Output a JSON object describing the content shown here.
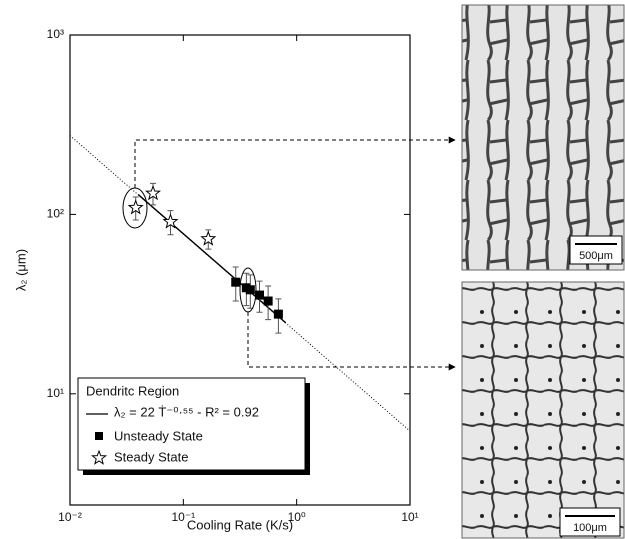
{
  "chart_data": {
    "type": "scatter",
    "xlabel": "Cooling Rate (K/s)",
    "ylabel": "λ₂ (μm)",
    "log_x": true,
    "log_y": true,
    "xlim": [
      0.01,
      10
    ],
    "ylim": [
      2.4,
      1000
    ],
    "xticks": [
      {
        "value": 0.01,
        "label": "10⁻²"
      },
      {
        "value": 0.1,
        "label": "10⁻¹"
      },
      {
        "value": 1,
        "label": "10⁰"
      },
      {
        "value": 10,
        "label": "10¹"
      }
    ],
    "yticks": [
      {
        "value": 10,
        "label": "10¹"
      },
      {
        "value": 100,
        "label": "10²"
      },
      {
        "value": 1000,
        "label": "10³"
      }
    ],
    "legend": {
      "title": "Dendritc Region",
      "position": "lower left"
    },
    "fit": {
      "label": "λ₂ = 22 Ṫ⁻⁰·⁵⁵ - R² = 0.92",
      "color": "#000",
      "x": [
        0.04,
        0.8
      ],
      "values": [
        129,
        24.9
      ],
      "extended_x": [
        0.01,
        10
      ],
      "extended_values": [
        275,
        6.2
      ]
    },
    "series": [
      {
        "name": "Unsteady State",
        "marker": "square",
        "color": "#000",
        "x": [
          0.29,
          0.36,
          0.39,
          0.47,
          0.56,
          0.69
        ],
        "values": [
          41.9,
          39,
          38,
          35.5,
          32.9,
          27.8
        ],
        "errors": [
          9,
          8,
          8,
          7,
          7,
          6
        ]
      },
      {
        "name": "Steady State",
        "marker": "star",
        "color": "#000",
        "x": [
          0.038,
          0.054,
          0.077,
          0.166
        ],
        "values": [
          109,
          131,
          91,
          73
        ],
        "errors": [
          16,
          18,
          14,
          9
        ]
      }
    ],
    "annotations": [
      "500μm",
      "100μm"
    ]
  }
}
